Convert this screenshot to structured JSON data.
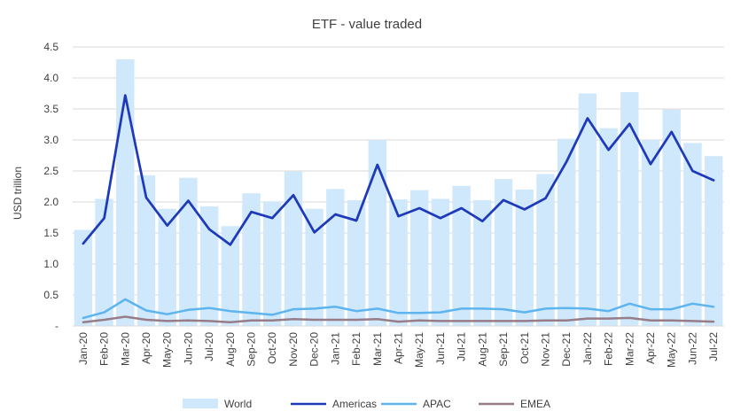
{
  "chart_data": {
    "type": "bar",
    "title": "ETF - value traded",
    "xlabel": "",
    "ylabel": "USD trillion",
    "ylim": [
      0,
      4.5
    ],
    "yticks": [
      0,
      0.5,
      1.0,
      1.5,
      2.0,
      2.5,
      3.0,
      3.5,
      4.0,
      4.5
    ],
    "ytick_labels": [
      "-",
      "0.5",
      "1.0",
      "1.5",
      "2.0",
      "2.5",
      "3.0",
      "3.5",
      "4.0",
      "4.5"
    ],
    "grid": "horizontal",
    "legend_position": "bottom",
    "categories": [
      "Jan-20",
      "Feb-20",
      "Mar-20",
      "Apr-20",
      "May-20",
      "Jun-20",
      "Jul-20",
      "Aug-20",
      "Sep-20",
      "Oct-20",
      "Nov-20",
      "Dec-20",
      "Jan-21",
      "Feb-21",
      "Mar-21",
      "Apr-21",
      "May-21",
      "Jun-21",
      "Jul-21",
      "Aug-21",
      "Sep-21",
      "Oct-21",
      "Nov-21",
      "Dec-21",
      "Jan-22",
      "Feb-22",
      "Mar-22",
      "Apr-22",
      "May-22",
      "Jun-22",
      "Jul-22"
    ],
    "series": [
      {
        "name": "World",
        "kind": "bar",
        "color": "#cfe8fb",
        "values": [
          1.55,
          2.05,
          4.3,
          2.43,
          1.89,
          2.39,
          1.93,
          1.61,
          2.14,
          2.01,
          2.49,
          1.89,
          2.21,
          2.03,
          3.0,
          2.04,
          2.19,
          2.05,
          2.26,
          2.03,
          2.37,
          2.2,
          2.45,
          3.02,
          3.75,
          3.19,
          3.77,
          3.0,
          3.49,
          2.95,
          2.74
        ]
      },
      {
        "name": "Americas",
        "kind": "line",
        "color": "#1f3ab8",
        "values": [
          1.33,
          1.74,
          3.72,
          2.07,
          1.62,
          2.02,
          1.56,
          1.31,
          1.84,
          1.74,
          2.11,
          1.51,
          1.8,
          1.7,
          2.6,
          1.77,
          1.9,
          1.74,
          1.9,
          1.69,
          2.03,
          1.88,
          2.06,
          2.65,
          3.35,
          2.84,
          3.26,
          2.61,
          3.13,
          2.5,
          2.35
        ]
      },
      {
        "name": "APAC",
        "kind": "line",
        "color": "#5db4ee",
        "values": [
          0.13,
          0.22,
          0.43,
          0.25,
          0.19,
          0.26,
          0.29,
          0.24,
          0.21,
          0.18,
          0.27,
          0.28,
          0.31,
          0.24,
          0.28,
          0.21,
          0.21,
          0.22,
          0.28,
          0.28,
          0.27,
          0.22,
          0.28,
          0.29,
          0.28,
          0.24,
          0.36,
          0.27,
          0.27,
          0.36,
          0.31
        ]
      },
      {
        "name": "EMEA",
        "kind": "line",
        "color": "#977d87",
        "values": [
          0.06,
          0.1,
          0.15,
          0.1,
          0.08,
          0.09,
          0.08,
          0.06,
          0.09,
          0.09,
          0.11,
          0.1,
          0.1,
          0.1,
          0.11,
          0.07,
          0.09,
          0.08,
          0.08,
          0.08,
          0.08,
          0.08,
          0.09,
          0.09,
          0.12,
          0.12,
          0.13,
          0.09,
          0.09,
          0.08,
          0.07
        ]
      }
    ]
  }
}
